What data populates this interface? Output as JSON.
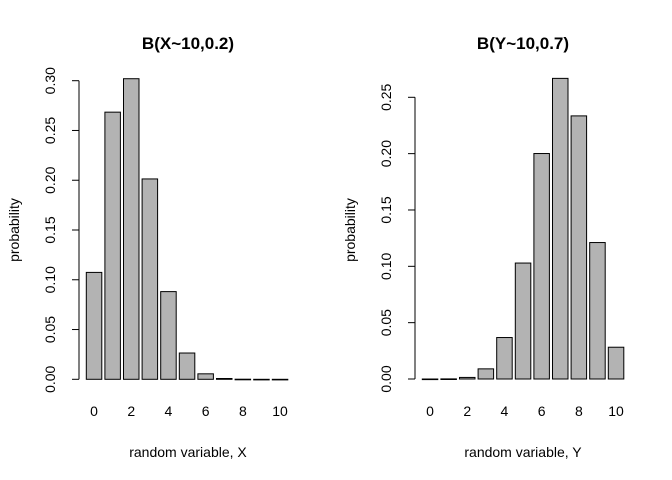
{
  "chart_data": [
    {
      "type": "bar",
      "title": "B(X~10,0.2)",
      "xlabel": "random variable, X",
      "ylabel": "probability",
      "categories": [
        "0",
        "1",
        "2",
        "3",
        "4",
        "5",
        "6",
        "7",
        "8",
        "9",
        "10"
      ],
      "x_tick_labels": [
        "0",
        "2",
        "4",
        "6",
        "8",
        "10"
      ],
      "values": [
        0.1074,
        0.2684,
        0.302,
        0.2013,
        0.0881,
        0.0264,
        0.0055,
        0.0008,
        0.0001,
        0.0,
        0.0
      ],
      "ylim": [
        0,
        0.3
      ],
      "y_ticks": [
        "0.00",
        "0.05",
        "0.10",
        "0.15",
        "0.20",
        "0.25",
        "0.30"
      ],
      "bar_color": "#b3b3b3",
      "grid": false
    },
    {
      "type": "bar",
      "title": "B(Y~10,0.7)",
      "xlabel": "random variable, Y",
      "ylabel": "probability",
      "categories": [
        "0",
        "1",
        "2",
        "3",
        "4",
        "5",
        "6",
        "7",
        "8",
        "9",
        "10"
      ],
      "x_tick_labels": [
        "0",
        "2",
        "4",
        "6",
        "8",
        "10"
      ],
      "values": [
        0.0,
        0.0001,
        0.0014,
        0.009,
        0.0368,
        0.1029,
        0.2001,
        0.2668,
        0.2335,
        0.1211,
        0.0282
      ],
      "ylim": [
        0,
        0.25
      ],
      "y_ticks": [
        "0.00",
        "0.05",
        "0.10",
        "0.15",
        "0.20",
        "0.25"
      ],
      "bar_color": "#b3b3b3",
      "grid": false
    }
  ]
}
